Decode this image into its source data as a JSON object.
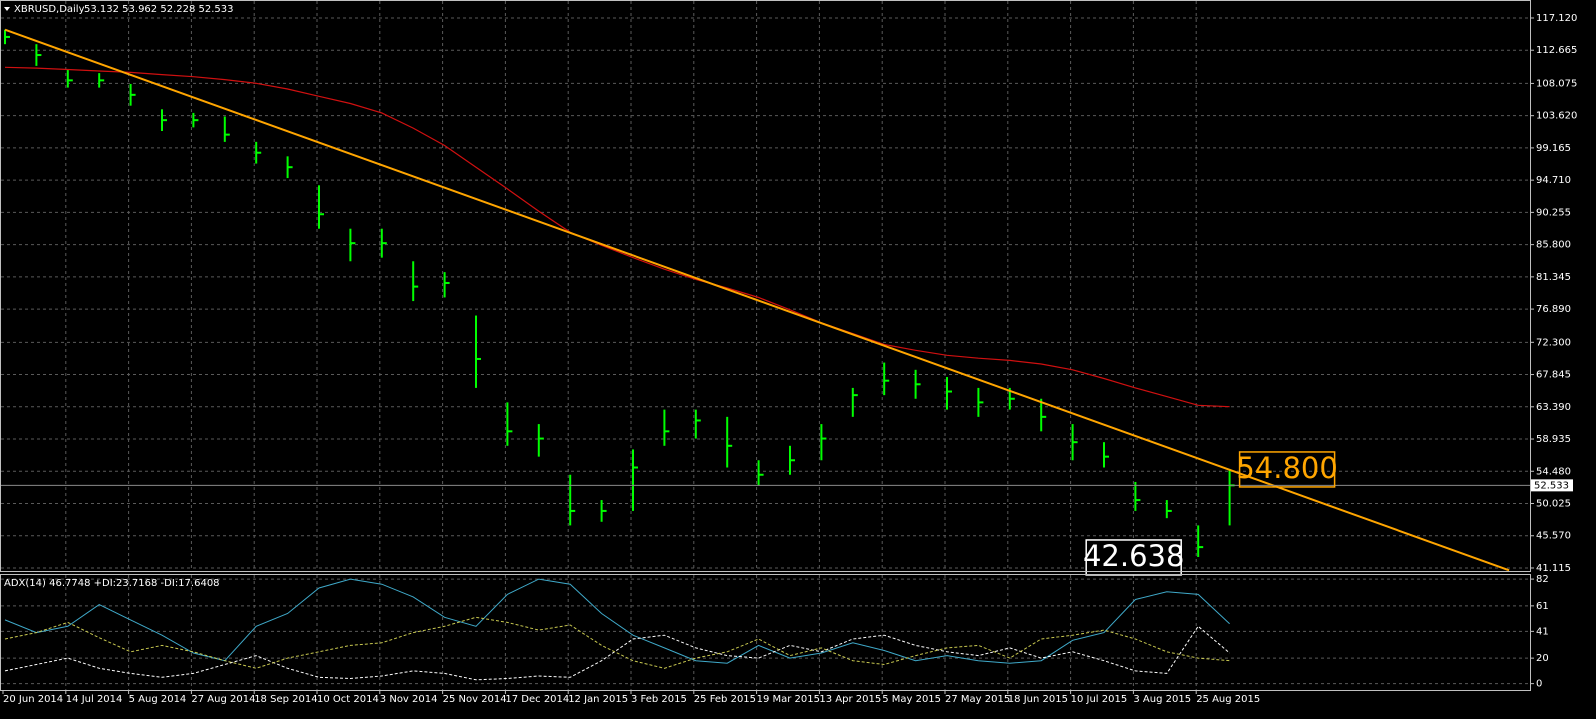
{
  "chart_data": [
    {
      "type": "ohlc",
      "title": "XBRUSD,Daily",
      "quote": "53.132 53.962 52.228 52.533",
      "categories": [
        "20 Jun 2014",
        null,
        "14 Jul 2014",
        null,
        "5 Aug 2014",
        null,
        "27 Aug 2014",
        null,
        "18 Sep 2014",
        null,
        "10 Oct 2014",
        null,
        "3 Nov 2014",
        null,
        "25 Nov 2014",
        null,
        "17 Dec 2014",
        null,
        "12 Jan 2015",
        null,
        "3 Feb 2015",
        null,
        "25 Feb 2015",
        null,
        "19 Mar 2015",
        null,
        "13 Apr 2015",
        null,
        "5 May 2015",
        null,
        "27 May 2015",
        null,
        "18 Jun 2015",
        null,
        "10 Jul 2015",
        null,
        "3 Aug 2015",
        null,
        "25 Aug 2015",
        null
      ],
      "high": [
        115.5,
        113.5,
        110,
        109.5,
        108,
        104.5,
        104,
        103.5,
        100,
        98,
        94,
        88,
        88,
        83.5,
        82,
        76,
        64,
        61,
        54,
        50.5,
        57.5,
        63,
        63,
        62,
        56,
        58,
        61,
        66,
        69.5,
        68.5,
        67.5,
        66,
        66,
        64.5,
        61,
        58.5,
        53,
        50.5,
        47,
        54.8
      ],
      "low": [
        113.5,
        110.5,
        107.5,
        107.5,
        105,
        101.5,
        102,
        100,
        97,
        95,
        88,
        83.5,
        84,
        78,
        78.5,
        66,
        58,
        56.5,
        47,
        47.5,
        49,
        58,
        59,
        55,
        52.5,
        54,
        56,
        62,
        65,
        64.5,
        63,
        62,
        63,
        60,
        56,
        55,
        49,
        48,
        42.638,
        47
      ],
      "close": [
        114.5,
        112,
        108.5,
        108.5,
        106.5,
        103,
        103,
        101,
        98.5,
        96.5,
        90,
        86,
        86,
        80,
        80.5,
        70,
        60,
        59,
        49,
        49,
        55,
        60,
        61.5,
        58,
        54,
        56,
        59,
        65,
        67,
        66.5,
        65.5,
        64,
        64.5,
        62,
        58.5,
        56.5,
        50.5,
        49,
        44,
        52.533
      ],
      "color": "#00ff00",
      "ma": {
        "color": "#d01010",
        "values": [
          110.3,
          110.2,
          110.0,
          109.8,
          109.6,
          109.3,
          109.0,
          108.6,
          108.1,
          107.3,
          106.3,
          105.3,
          104.0,
          101.9,
          99.5,
          96.5,
          93.5,
          90.4,
          87.5,
          85.7,
          84.0,
          82.4,
          81.0,
          79.8,
          78.5,
          76.8,
          75.0,
          73.5,
          72.0,
          71.2,
          70.5,
          70.1,
          69.8,
          69.3,
          68.5,
          67.3,
          66.0,
          64.8,
          63.6,
          63.4
        ]
      },
      "trendline": {
        "color": "#ffa500",
        "x": [
          0,
          47.9
        ],
        "values": [
          115.5,
          40.8
        ]
      },
      "current_price": 52.533,
      "annotations": [
        {
          "label": "54.800",
          "value": 54.8,
          "index": 39,
          "color": "#ffa500"
        },
        {
          "label": "42.638",
          "value": 42.638,
          "index": 38,
          "color": "#ffffff"
        }
      ],
      "ylim": [
        40.56,
        119.19
      ],
      "yticks": [
        {
          "value": 117.12,
          "label": "117.120"
        },
        {
          "value": 112.665,
          "label": "112.665"
        },
        {
          "value": 108.075,
          "label": "108.075"
        },
        {
          "value": 103.62,
          "label": "103.620"
        },
        {
          "value": 99.165,
          "label": "99.165"
        },
        {
          "value": 94.71,
          "label": "94.710"
        },
        {
          "value": 90.255,
          "label": "90.255"
        },
        {
          "value": 85.8,
          "label": "85.800"
        },
        {
          "value": 81.345,
          "label": "81.345"
        },
        {
          "value": 76.89,
          "label": "76.890"
        },
        {
          "value": 72.3,
          "label": "72.300"
        },
        {
          "value": 67.845,
          "label": "67.845"
        },
        {
          "value": 63.39,
          "label": "63.390"
        },
        {
          "value": 58.935,
          "label": "58.935"
        },
        {
          "value": 54.48,
          "label": "54.480"
        },
        {
          "value": 50.025,
          "label": "50.025"
        },
        {
          "value": 45.57,
          "label": "45.570"
        },
        {
          "value": 41.115,
          "label": "41.115"
        }
      ],
      "grid": true
    },
    {
      "type": "line",
      "title": "ADX(14) 46.7748 +DI:23.7168 -DI:17.6408",
      "series": [
        {
          "color": "#3fa9c9",
          "values": [
            50,
            40,
            45,
            62,
            50,
            38,
            24,
            18,
            45,
            55,
            75,
            82,
            78,
            68,
            52,
            45,
            70,
            82,
            78,
            55,
            38,
            28,
            18,
            16,
            30,
            20,
            24,
            32,
            26,
            18,
            22,
            18,
            16,
            18,
            34,
            40,
            66,
            72,
            70,
            47
          ]
        },
        {
          "color": "#ffffff",
          "dashed": true,
          "values": [
            10,
            15,
            20,
            12,
            8,
            5,
            8,
            15,
            22,
            12,
            5,
            4,
            6,
            10,
            8,
            3,
            4,
            6,
            5,
            18,
            35,
            38,
            28,
            22,
            20,
            30,
            25,
            35,
            38,
            30,
            25,
            22,
            28,
            20,
            25,
            18,
            10,
            8,
            45,
            24
          ]
        },
        {
          "color": "#c8c850",
          "dashed": true,
          "values": [
            35,
            40,
            48,
            36,
            25,
            30,
            25,
            18,
            12,
            20,
            25,
            30,
            32,
            40,
            45,
            52,
            48,
            42,
            46,
            30,
            18,
            12,
            20,
            25,
            35,
            22,
            28,
            18,
            15,
            22,
            28,
            30,
            20,
            35,
            38,
            42,
            35,
            25,
            20,
            18
          ]
        }
      ],
      "ylim": [
        -5,
        86
      ],
      "yticks": [
        82,
        61,
        41,
        20,
        0
      ],
      "grid": true
    }
  ]
}
